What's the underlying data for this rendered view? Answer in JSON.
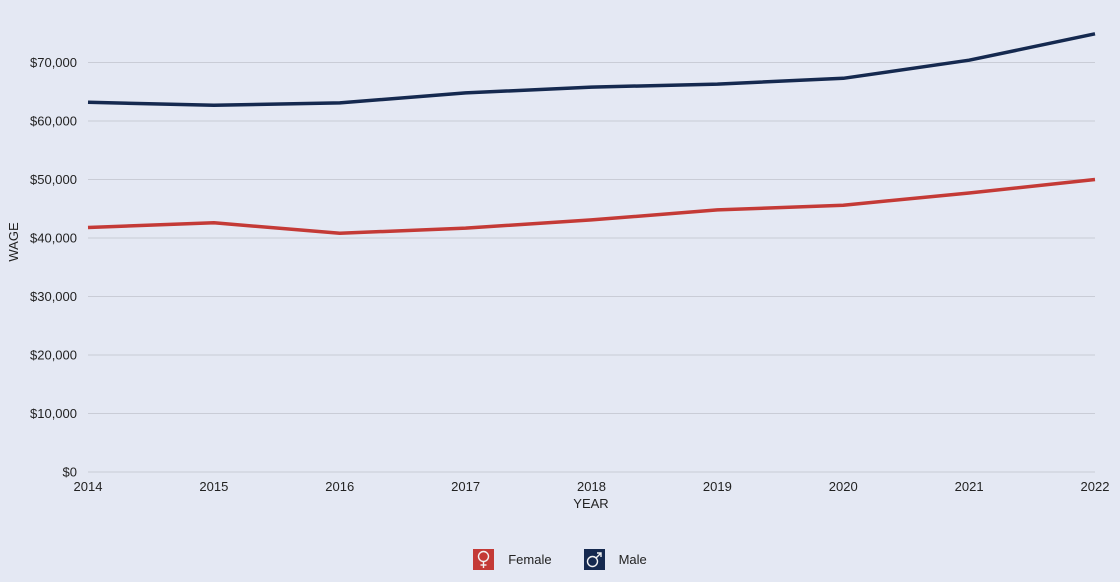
{
  "chart_data": {
    "type": "line",
    "xlabel": "YEAR",
    "ylabel": "WAGE",
    "x": [
      2014,
      2015,
      2016,
      2017,
      2018,
      2019,
      2020,
      2021,
      2022
    ],
    "ylim": [
      0,
      80000
    ],
    "yticks": [
      0,
      10000,
      20000,
      30000,
      40000,
      50000,
      60000,
      70000
    ],
    "ytick_labels": [
      "$0",
      "$10,000",
      "$20,000",
      "$30,000",
      "$40,000",
      "$50,000",
      "$60,000",
      "$70,000"
    ],
    "grid": true,
    "legend_position": "bottom",
    "series": [
      {
        "name": "Female",
        "color": "#c43a36",
        "icon": "female-symbol-icon",
        "values": [
          41800,
          42600,
          40800,
          41700,
          43100,
          44800,
          45600,
          47700,
          50000
        ]
      },
      {
        "name": "Male",
        "color": "#15294f",
        "icon": "male-symbol-icon",
        "values": [
          63200,
          62700,
          63100,
          64800,
          65800,
          66300,
          67300,
          70400,
          74900
        ]
      }
    ]
  }
}
